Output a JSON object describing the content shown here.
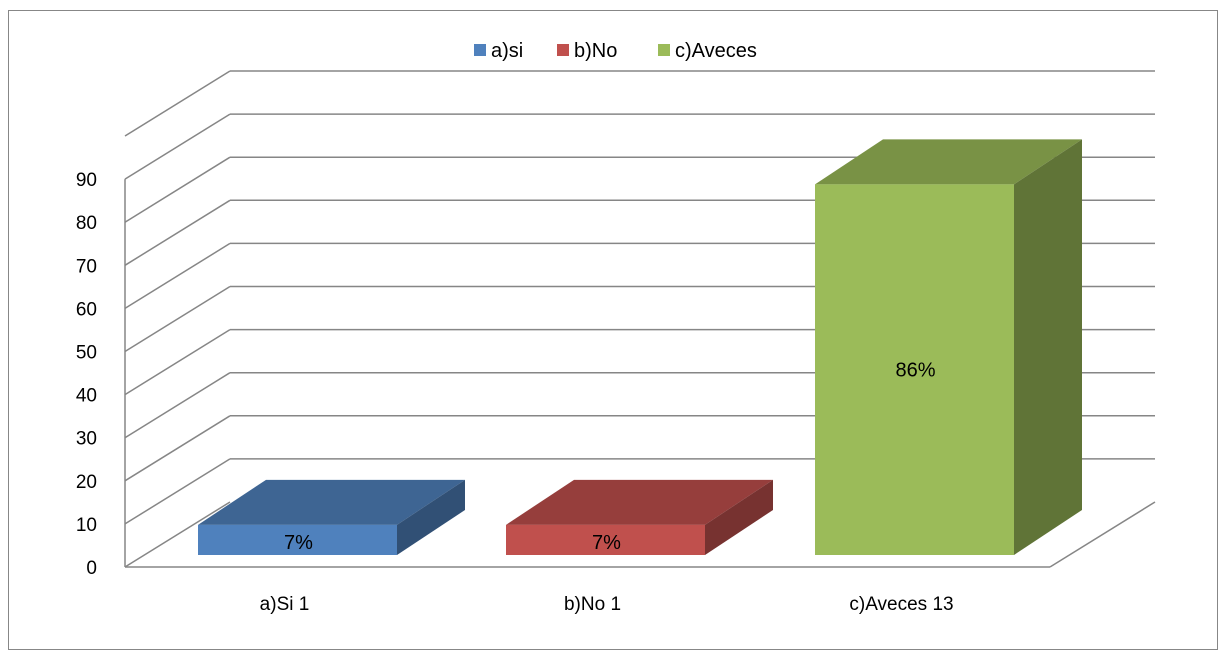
{
  "chart_data": {
    "type": "bar",
    "is_3d": true,
    "categories": [
      "a)Si 1",
      "b)No 1",
      "c)Aveces 13"
    ],
    "values": [
      7,
      7,
      86
    ],
    "data_labels": [
      "7%",
      "7%",
      "86%"
    ],
    "series": [
      {
        "name": "a)si",
        "color": "#4f81bd"
      },
      {
        "name": "b)No",
        "color": "#c0504d"
      },
      {
        "name": "c)Aveces",
        "color": "#9bbb59"
      }
    ],
    "ylim": [
      0,
      90
    ],
    "yticks": [
      "0",
      "10",
      "20",
      "30",
      "40",
      "50",
      "60",
      "70",
      "80",
      "90"
    ],
    "grid": true,
    "legend_position": "top"
  }
}
